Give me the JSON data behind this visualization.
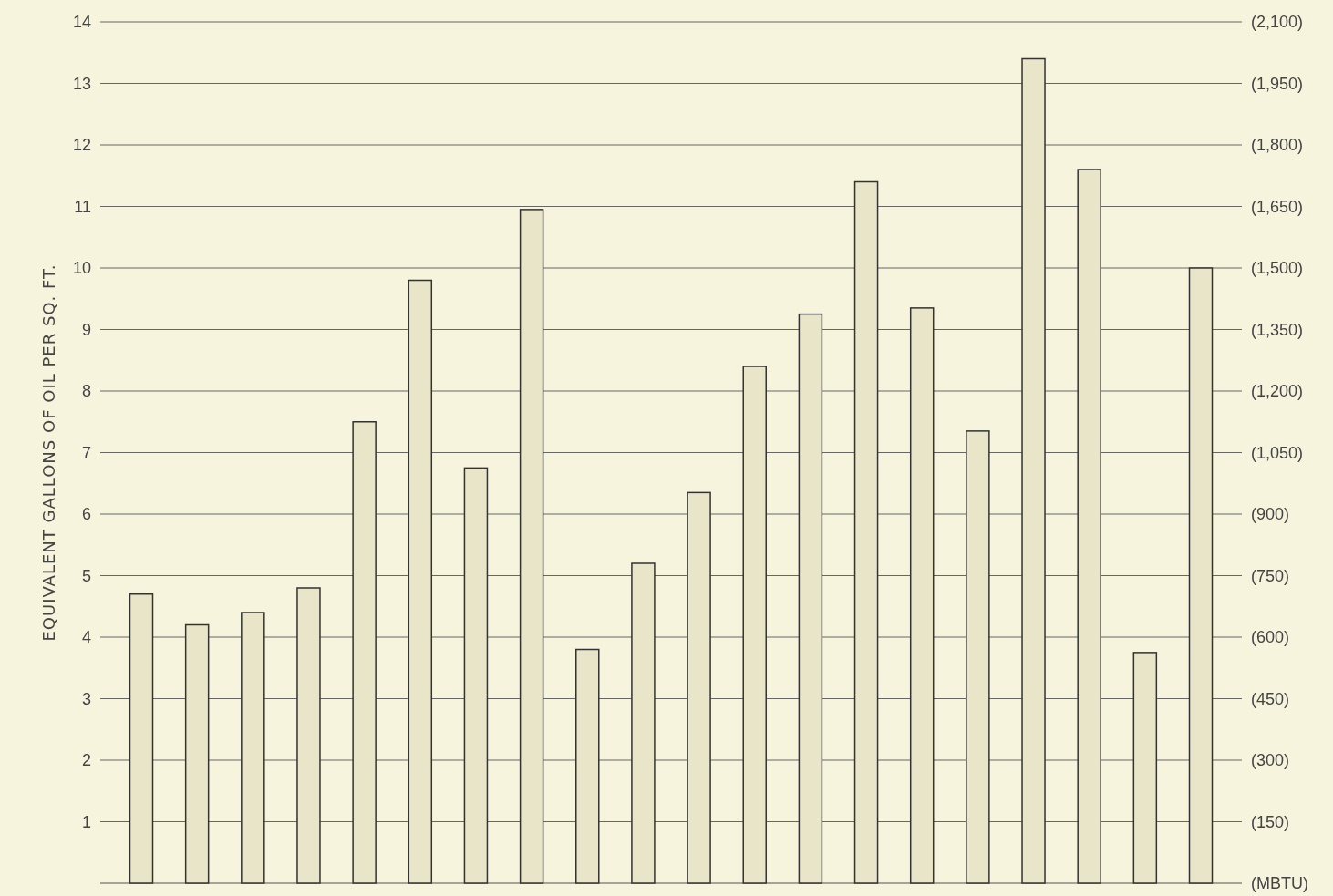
{
  "chart_data": {
    "type": "bar",
    "ylabel": "EQUIVALENT GALLONS OF OIL PER SQ. FT.",
    "categories": [
      null,
      null,
      null,
      null,
      null,
      null,
      null,
      null,
      null,
      null,
      null,
      null,
      null,
      null,
      null,
      null,
      null,
      null,
      null,
      null
    ],
    "series": [
      {
        "color": "#e9e5c9",
        "values": [
          4.7,
          4.2,
          4.4,
          4.8,
          7.5,
          9.8,
          6.75,
          10.95,
          3.8,
          5.2,
          6.35,
          8.4,
          9.25,
          11.4,
          9.35,
          7.35,
          13.4,
          11.6,
          3.75,
          10.0
        ]
      }
    ],
    "ylim": [
      0,
      14
    ],
    "yticks": [
      1,
      2,
      3,
      4,
      5,
      6,
      7,
      8,
      9,
      10,
      11,
      12,
      13,
      14
    ],
    "y2lim": [
      0,
      2100
    ],
    "y2ticks": [
      {
        "value": 0,
        "label": "(MBTU)"
      },
      {
        "value": 150,
        "label": "(150)"
      },
      {
        "value": 300,
        "label": "(300)"
      },
      {
        "value": 450,
        "label": "(450)"
      },
      {
        "value": 600,
        "label": "(600)"
      },
      {
        "value": 750,
        "label": "(750)"
      },
      {
        "value": 900,
        "label": "(900)"
      },
      {
        "value": 1050,
        "label": "(1,050)"
      },
      {
        "value": 1200,
        "label": "(1,200)"
      },
      {
        "value": 1350,
        "label": "(1,350)"
      },
      {
        "value": 1500,
        "label": "(1,500)"
      },
      {
        "value": 1650,
        "label": "(1,650)"
      },
      {
        "value": 1800,
        "label": "(1,800)"
      },
      {
        "value": 1950,
        "label": "(1,950)"
      },
      {
        "value": 2100,
        "label": "(2,100)"
      }
    ],
    "grid": "y",
    "tick_labels": "y"
  }
}
